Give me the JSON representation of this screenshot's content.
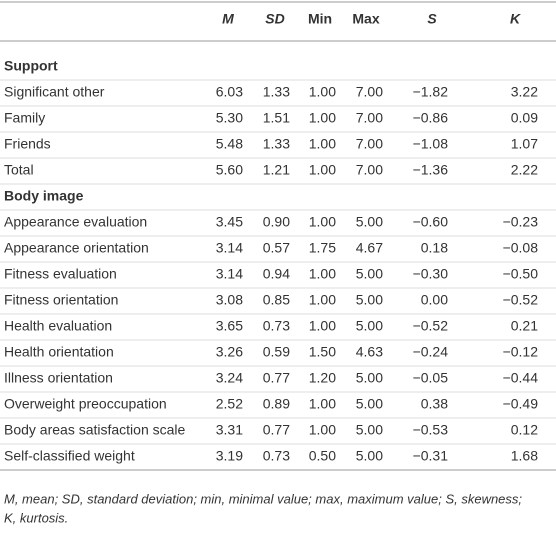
{
  "table": {
    "columns": [
      "M",
      "SD",
      "Min",
      "Max",
      "S",
      "K"
    ],
    "sections": [
      {
        "title": "Support",
        "rows": [
          {
            "label": "Significant other",
            "cells": [
              "6.03",
              "1.33",
              "1.00",
              "7.00",
              "−1.82",
              "3.22"
            ]
          },
          {
            "label": "Family",
            "cells": [
              "5.30",
              "1.51",
              "1.00",
              "7.00",
              "−0.86",
              "0.09"
            ]
          },
          {
            "label": "Friends",
            "cells": [
              "5.48",
              "1.33",
              "1.00",
              "7.00",
              "−1.08",
              "1.07"
            ]
          },
          {
            "label": "Total",
            "cells": [
              "5.60",
              "1.21",
              "1.00",
              "7.00",
              "−1.36",
              "2.22"
            ]
          }
        ]
      },
      {
        "title": "Body image",
        "rows": [
          {
            "label": "Appearance evaluation",
            "cells": [
              "3.45",
              "0.90",
              "1.00",
              "5.00",
              "−0.60",
              "−0.23"
            ]
          },
          {
            "label": "Appearance orientation",
            "cells": [
              "3.14",
              "0.57",
              "1.75",
              "4.67",
              "0.18",
              "−0.08"
            ]
          },
          {
            "label": "Fitness evaluation",
            "cells": [
              "3.14",
              "0.94",
              "1.00",
              "5.00",
              "−0.30",
              "−0.50"
            ]
          },
          {
            "label": "Fitness orientation",
            "cells": [
              "3.08",
              "0.85",
              "1.00",
              "5.00",
              "0.00",
              "−0.52"
            ]
          },
          {
            "label": "Health evaluation",
            "cells": [
              "3.65",
              "0.73",
              "1.00",
              "5.00",
              "−0.52",
              "0.21"
            ]
          },
          {
            "label": "Health orientation",
            "cells": [
              "3.26",
              "0.59",
              "1.50",
              "4.63",
              "−0.24",
              "−0.12"
            ]
          },
          {
            "label": "Illness orientation",
            "cells": [
              "3.24",
              "0.77",
              "1.20",
              "5.00",
              "−0.05",
              "−0.44"
            ]
          },
          {
            "label": "Overweight preoccupation",
            "cells": [
              "2.52",
              "0.89",
              "1.00",
              "5.00",
              "0.38",
              "−0.49"
            ]
          },
          {
            "label": "Body areas satisfaction scale",
            "cells": [
              "3.31",
              "0.77",
              "1.00",
              "5.00",
              "−0.53",
              "0.12"
            ]
          },
          {
            "label": "Self-classified weight",
            "cells": [
              "3.19",
              "0.73",
              "0.50",
              "5.00",
              "−0.31",
              "1.68"
            ]
          }
        ]
      }
    ]
  },
  "footnote": [
    "M, mean; SD, standard deviation; min, minimal value; max, maximum value; S, skewness;",
    "K, kurtosis."
  ]
}
